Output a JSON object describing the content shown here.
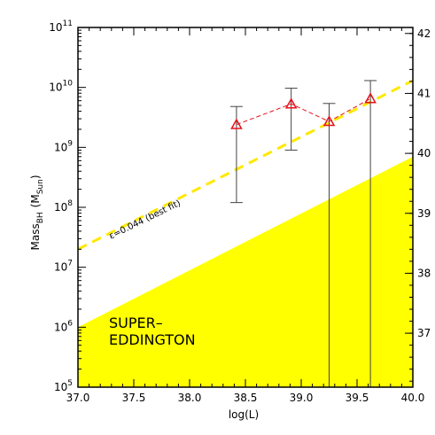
{
  "chart_data": {
    "type": "scatter",
    "xlabel": "log(L)",
    "ylabel_main": "Mass",
    "ylabel_sub": "BH",
    "ylabel_unit_pre": "(M",
    "ylabel_unit_sub": "Sun",
    "ylabel_unit_post": ")",
    "xlim": [
      37.0,
      40.0
    ],
    "ylim_log10": [
      5,
      11
    ],
    "right_ylim": [
      36.1,
      42.1
    ],
    "x_ticks": [
      "37.0",
      "37.5",
      "38.0",
      "38.5",
      "39.0",
      "39.5",
      "40.0"
    ],
    "x_tick_values": [
      37.0,
      37.5,
      38.0,
      38.5,
      39.0,
      39.5,
      40.0
    ],
    "y_ticks_exponents": [
      "5",
      "6",
      "7",
      "8",
      "9",
      "10",
      "11"
    ],
    "y_tick_base": "10",
    "right_y_ticks": [
      "37",
      "38",
      "39",
      "40",
      "41",
      "42"
    ],
    "points": [
      {
        "x": 38.42,
        "y": 2400000000.0,
        "y_low": 120000000.0,
        "y_high": 4800000000.0
      },
      {
        "x": 38.91,
        "y": 5300000000.0,
        "y_low": 900000000.0,
        "y_high": 9700000000.0
      },
      {
        "x": 39.25,
        "y": 2700000000.0,
        "y_low": 100000.0,
        "y_high": 5400000000.0
      },
      {
        "x": 39.62,
        "y": 6500000000.0,
        "y_low": 100000.0,
        "y_high": 13000000000.0
      }
    ],
    "best_fit": {
      "x": [
        37.0,
        40.0
      ],
      "y": [
        20000000.0,
        13000000000.0
      ],
      "label": "ε=0.044 (best fit)"
    },
    "super_eddington": {
      "x": [
        37.0,
        40.0
      ],
      "y_upper": [
        1000000.0,
        700000000.0
      ],
      "label_line1": "SUPER–",
      "label_line2": "EDDINGTON"
    },
    "colors": {
      "points": "#e8111a",
      "best_fit": "#ffe800",
      "shade": "#ffff00",
      "error_bars": "#444444"
    }
  }
}
